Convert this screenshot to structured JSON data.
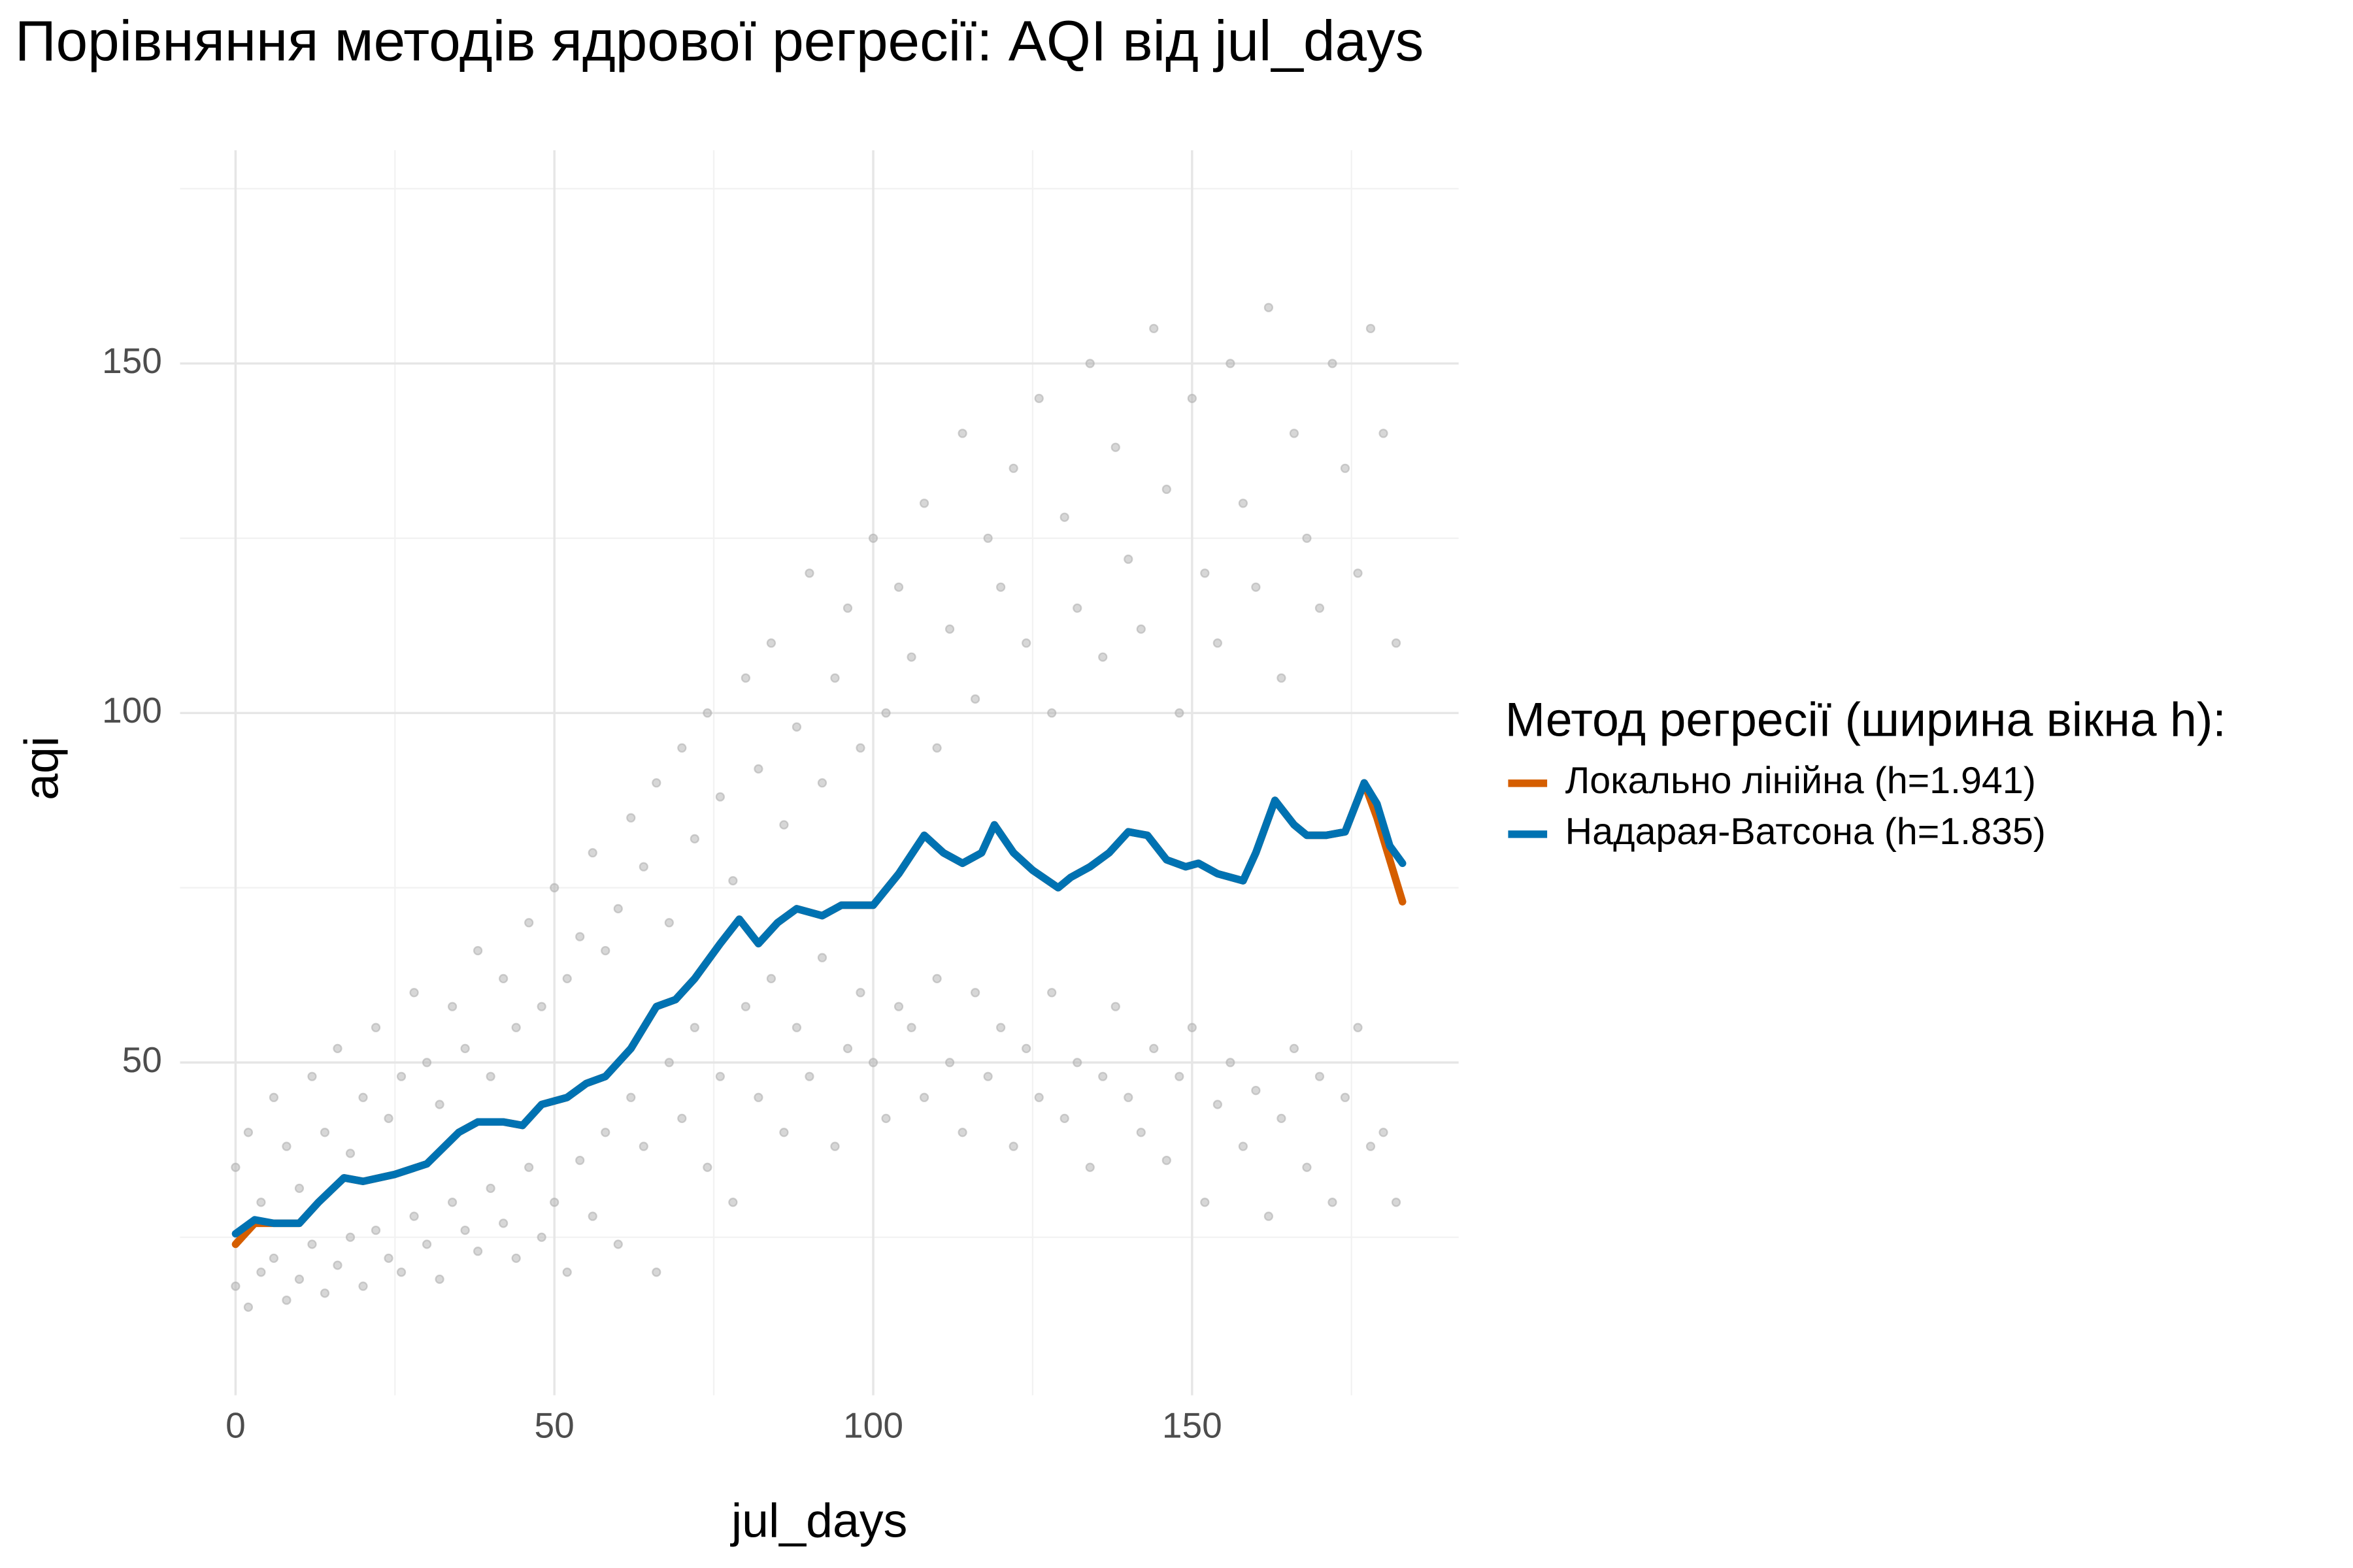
{
  "chart_data": {
    "type": "line",
    "title": "Порівняння методів ядрової регресії: AQI від jul_days",
    "x_label": "jul_days",
    "y_label": "aqi",
    "legend_title": "Метод регресії (ширина вікна h):",
    "legend_position": "right",
    "grid": true,
    "xlim": [
      -8.7,
      191.8
    ],
    "ylim": [
      2.4,
      180.5
    ],
    "xticks": [
      0,
      50,
      100,
      150
    ],
    "yticks": [
      50,
      100,
      150
    ],
    "minor_xticks": [
      25,
      75,
      125,
      175
    ],
    "minor_yticks": [
      25,
      75,
      125,
      175
    ],
    "points": {
      "color": "#b0b0b0",
      "x": [
        0,
        2,
        4,
        6,
        8,
        10,
        12,
        14,
        16,
        18,
        20,
        22,
        24,
        26,
        28,
        30,
        32,
        34,
        36,
        38,
        40,
        42,
        44,
        46,
        48,
        50,
        52,
        54,
        56,
        58,
        60,
        62,
        64,
        66,
        68,
        70,
        72,
        74,
        76,
        78,
        80,
        82,
        84,
        86,
        88,
        90,
        92,
        94,
        96,
        98,
        100,
        102,
        104,
        106,
        108,
        110,
        112,
        114,
        116,
        118,
        120,
        122,
        124,
        126,
        128,
        130,
        132,
        134,
        136,
        138,
        140,
        142,
        144,
        146,
        148,
        150,
        152,
        154,
        156,
        158,
        160,
        162,
        164,
        166,
        168,
        170,
        172,
        174,
        176,
        178,
        180,
        182,
        0,
        2,
        4,
        6,
        8,
        10,
        12,
        14,
        16,
        18,
        20,
        22,
        24,
        26,
        28,
        30,
        32,
        34,
        36,
        38,
        40,
        42,
        44,
        46,
        48,
        50,
        52,
        54,
        56,
        58,
        60,
        62,
        64,
        66,
        68,
        70,
        72,
        74,
        76,
        78,
        80,
        82,
        84,
        86,
        88,
        90,
        92,
        94,
        96,
        98,
        100,
        102,
        104,
        106,
        108,
        110,
        112,
        114,
        116,
        118,
        120,
        122,
        124,
        126,
        128,
        130,
        132,
        134,
        136,
        138,
        140,
        142,
        144,
        146,
        148,
        150,
        152,
        154,
        156,
        158,
        160,
        162,
        164,
        166,
        168,
        170,
        172,
        174,
        176,
        178,
        180,
        182
      ],
      "y": [
        35,
        40,
        30,
        45,
        38,
        32,
        48,
        40,
        52,
        37,
        45,
        55,
        42,
        48,
        60,
        50,
        44,
        58,
        52,
        66,
        48,
        62,
        55,
        70,
        58,
        75,
        62,
        68,
        80,
        66,
        72,
        85,
        78,
        90,
        70,
        95,
        82,
        100,
        88,
        76,
        105,
        92,
        110,
        84,
        98,
        120,
        90,
        105,
        115,
        95,
        125,
        100,
        118,
        108,
        130,
        95,
        112,
        140,
        102,
        125,
        118,
        135,
        110,
        145,
        100,
        128,
        115,
        150,
        108,
        138,
        122,
        112,
        155,
        132,
        100,
        145,
        120,
        110,
        150,
        130,
        118,
        158,
        105,
        140,
        125,
        115,
        150,
        135,
        120,
        155,
        140,
        110,
        18,
        15,
        20,
        22,
        16,
        19,
        24,
        17,
        21,
        25,
        18,
        26,
        22,
        20,
        28,
        24,
        19,
        30,
        26,
        23,
        32,
        27,
        22,
        35,
        25,
        30,
        20,
        36,
        28,
        40,
        24,
        45,
        38,
        20,
        50,
        42,
        55,
        35,
        48,
        30,
        58,
        45,
        62,
        40,
        55,
        48,
        65,
        38,
        52,
        60,
        50,
        42,
        58,
        55,
        45,
        62,
        50,
        40,
        60,
        48,
        55,
        38,
        52,
        45,
        60,
        42,
        50,
        35,
        48,
        58,
        45,
        40,
        52,
        36,
        48,
        55,
        30,
        44,
        50,
        38,
        46,
        28,
        42,
        52,
        35,
        48,
        30,
        45,
        55,
        38,
        40,
        30
      ]
    },
    "series": [
      {
        "name": "Локально лінійна (h=1.941)",
        "color": "#D55E00",
        "x": [
          0,
          3,
          6,
          10,
          13,
          17,
          20,
          25,
          30,
          35,
          38,
          42,
          45,
          48,
          52,
          55,
          58,
          62,
          66,
          69,
          72,
          76,
          79,
          82,
          85,
          88,
          92,
          95,
          100,
          104,
          108,
          111,
          114,
          117,
          119,
          122,
          125,
          129,
          131,
          134,
          137,
          140,
          143,
          146,
          149,
          151,
          154,
          158,
          160,
          163,
          166,
          168,
          171,
          174,
          177,
          179,
          181,
          183
        ],
        "values": [
          24,
          27,
          27,
          27,
          30,
          33.5,
          33,
          34,
          35.5,
          40,
          41.5,
          41.5,
          41,
          44,
          45,
          47,
          48,
          52,
          58,
          59,
          62,
          67,
          70.5,
          67,
          70,
          72,
          71,
          72.5,
          72.5,
          77,
          82.5,
          80,
          78.5,
          80,
          84,
          80,
          77.5,
          75,
          76.5,
          78,
          80,
          83,
          82.5,
          79,
          78,
          78.5,
          77,
          76,
          80,
          87.5,
          84,
          82.5,
          82.5,
          83,
          90,
          85,
          79,
          73
        ]
      },
      {
        "name": "Надарая-Ватсона (h=1.835)",
        "color": "#0072B2",
        "x": [
          0,
          3,
          6,
          10,
          13,
          17,
          20,
          25,
          30,
          35,
          38,
          42,
          45,
          48,
          52,
          55,
          58,
          62,
          66,
          69,
          72,
          76,
          79,
          82,
          85,
          88,
          92,
          95,
          100,
          104,
          108,
          111,
          114,
          117,
          119,
          122,
          125,
          129,
          131,
          134,
          137,
          140,
          143,
          146,
          149,
          151,
          154,
          158,
          160,
          163,
          166,
          168,
          171,
          174,
          177,
          179,
          181,
          183
        ],
        "values": [
          25.5,
          27.5,
          27,
          27,
          30,
          33.5,
          33,
          34,
          35.5,
          40,
          41.5,
          41.5,
          41,
          44,
          45,
          47,
          48,
          52,
          58,
          59,
          62,
          67,
          70.5,
          67,
          70,
          72,
          71,
          72.5,
          72.5,
          77,
          82.5,
          80,
          78.5,
          80,
          84,
          80,
          77.5,
          75,
          76.5,
          78,
          80,
          83,
          82.5,
          79,
          78,
          78.5,
          77,
          76,
          80,
          87.5,
          84,
          82.5,
          82.5,
          83,
          90,
          87,
          81,
          78.5
        ]
      }
    ]
  }
}
